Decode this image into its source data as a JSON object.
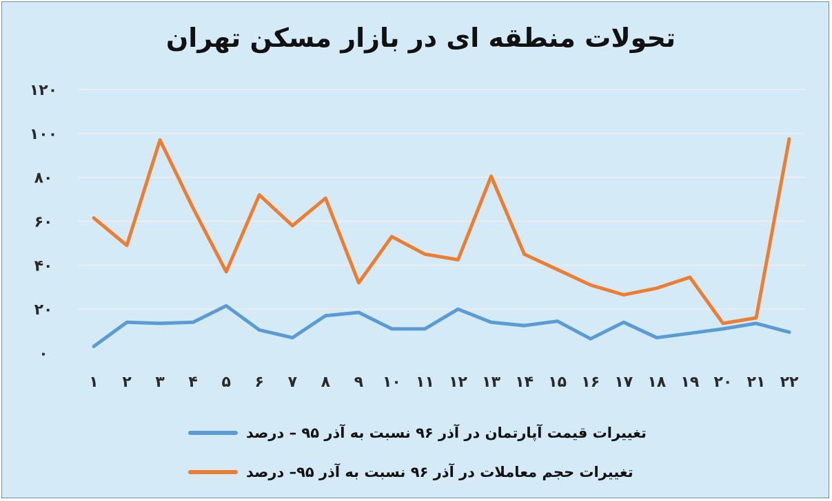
{
  "chart_data": {
    "type": "line",
    "title": "تحولات منطقه ای در بازار مسکن تهران",
    "xlabel": "",
    "ylabel": "",
    "categories": [
      "۱",
      "۲",
      "۳",
      "۴",
      "۵",
      "۶",
      "۷",
      "۸",
      "۹",
      "۱۰",
      "۱۱",
      "۱۲",
      "۱۳",
      "۱۴",
      "۱۵",
      "۱۶",
      "۱۷",
      "۱۸",
      "۱۹",
      "۲۰",
      "۲۱",
      "۲۲"
    ],
    "y_ticks": [
      "۰",
      "۲۰",
      "۴۰",
      "۶۰",
      "۸۰",
      "۱۰۰",
      "۱۲۰"
    ],
    "y_tick_values": [
      0,
      20,
      40,
      60,
      80,
      100,
      120
    ],
    "ylim": [
      0,
      120
    ],
    "grid": true,
    "legend_position": "bottom",
    "series": [
      {
        "name": "تغییرات قیمت آپارتمان در آذر ۹۶ نسبت به آذر ۹۵ – درصد",
        "color": "#5b9bd5",
        "values": [
          3,
          14,
          13.5,
          14,
          21.5,
          10.5,
          7,
          17,
          18.5,
          11,
          11,
          20,
          14,
          12.5,
          14.5,
          6.5,
          14,
          7,
          9,
          11,
          13.5,
          9.5
        ]
      },
      {
        "name": "تغییرات حجم معاملات در آذر ۹۶ نسبت به آذر ۹۵– درصد",
        "color": "#ed7d31",
        "values": [
          61.5,
          49,
          97,
          66,
          37,
          72,
          58,
          70.5,
          32,
          53,
          45,
          42.5,
          80.5,
          45,
          38,
          31,
          26.5,
          29.5,
          34.5,
          13.5,
          16,
          97.5
        ]
      }
    ]
  }
}
